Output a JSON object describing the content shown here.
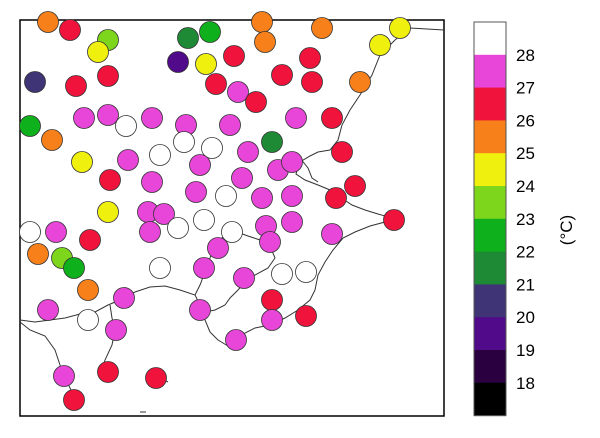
{
  "legend": {
    "unit": "(°C)",
    "levels": [
      {
        "label": "28",
        "color": "#ffffff"
      },
      {
        "label": "27",
        "color": "#e846d8"
      },
      {
        "label": "26",
        "color": "#f0143c"
      },
      {
        "label": "25",
        "color": "#f7801a"
      },
      {
        "label": "24",
        "color": "#f0f00f"
      },
      {
        "label": "23",
        "color": "#7ed61c"
      },
      {
        "label": "22",
        "color": "#0eb01b"
      },
      {
        "label": "21",
        "color": "#1f8a35"
      },
      {
        "label": "20",
        "color": "#3f3475"
      },
      {
        "label": "19",
        "color": "#500a8a"
      },
      {
        "label": "18",
        "color": "#2a0040"
      },
      {
        "label": "",
        "color": "#000000"
      }
    ]
  }
}
